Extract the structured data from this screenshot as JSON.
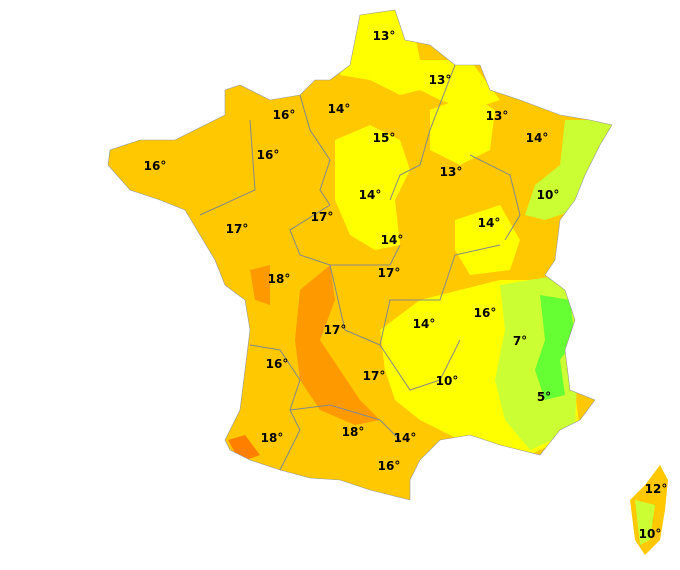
{
  "map": {
    "colors": {
      "orange": "#ffc800",
      "dark_orange": "#ff9900",
      "deep_orange": "#ff7f00",
      "yellow": "#ffff00",
      "yellow_green": "#ccff33",
      "green": "#66ff33",
      "borders": "#888888"
    },
    "labels": [
      "13°",
      "13°",
      "16°",
      "14°",
      "13°",
      "14°",
      "15°",
      "16°",
      "16°",
      "13°",
      "10°",
      "14°",
      "17°",
      "17°",
      "14°",
      "14°",
      "17°",
      "18°",
      "16°",
      "14°",
      "17°",
      "7°",
      "16°",
      "17°",
      "10°",
      "5°",
      "18°",
      "18°",
      "14°",
      "16°",
      "12°",
      "10°"
    ]
  }
}
